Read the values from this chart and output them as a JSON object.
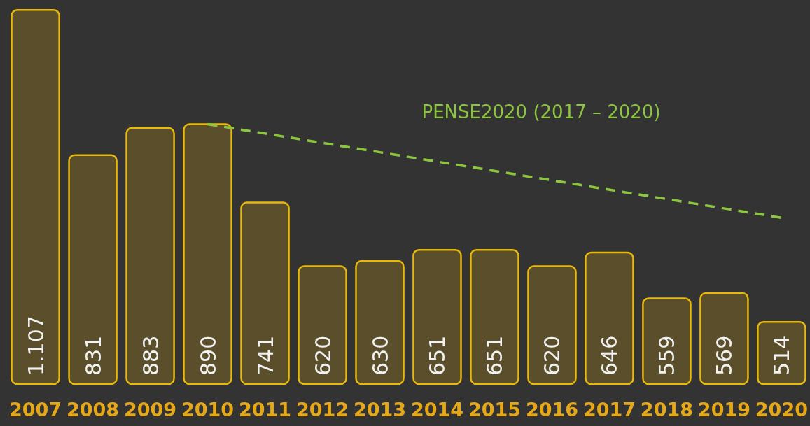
{
  "chart_data": {
    "type": "bar",
    "categories": [
      "2007",
      "2008",
      "2009",
      "2010",
      "2011",
      "2012",
      "2013",
      "2014",
      "2015",
      "2016",
      "2017",
      "2018",
      "2019",
      "2020"
    ],
    "series": [
      {
        "color": "#e8b80c",
        "values": [
          1107,
          831,
          883,
          890,
          741,
          620,
          630,
          651,
          651,
          620,
          646,
          559,
          569,
          514
        ],
        "value_labels": [
          "1.107",
          "831",
          "883",
          "890",
          "741",
          "620",
          "630",
          "651",
          "651",
          "620",
          "646",
          "559",
          "569",
          "514"
        ]
      },
      {
        "type": "line",
        "name": "PENSE2020 (2017 – 2020)",
        "color": "#8cc63f",
        "values": [
          null,
          null,
          null,
          890,
          null,
          null,
          null,
          null,
          null,
          null,
          null,
          null,
          null,
          712
        ],
        "line_style": "dashed"
      }
    ],
    "ylim": [
      396,
      1110
    ],
    "tick_labels": "x"
  }
}
